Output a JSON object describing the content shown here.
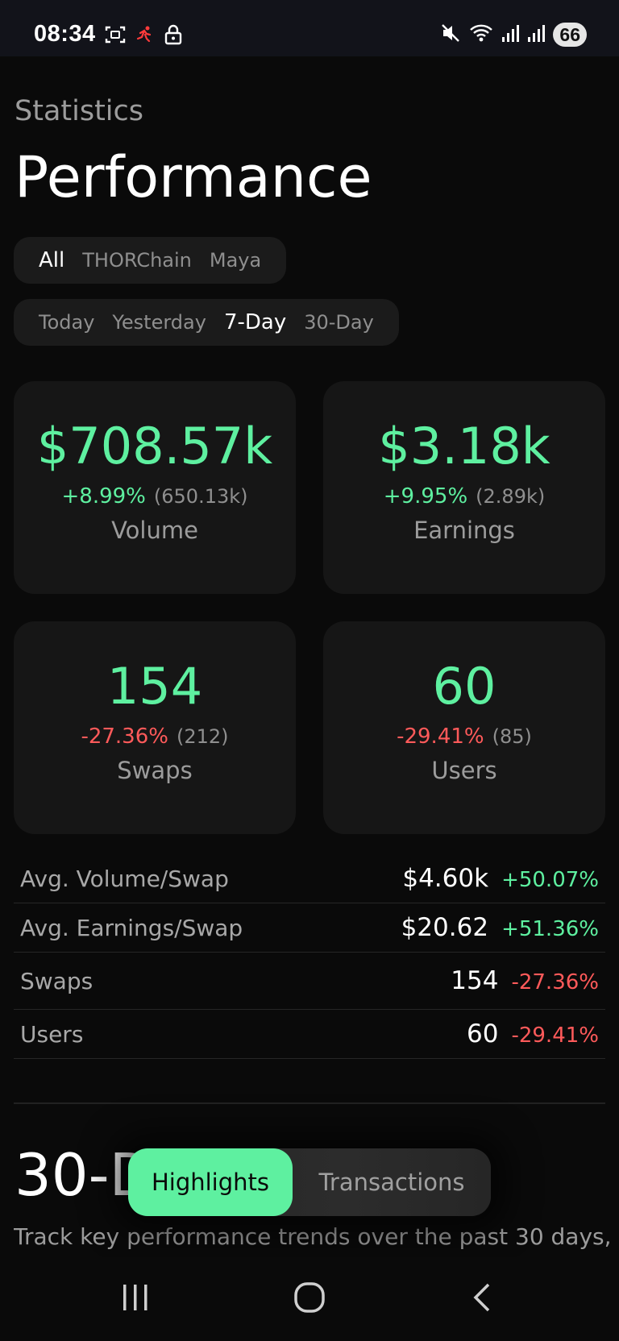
{
  "status_bar": {
    "time": "08:34",
    "left_icons": [
      "screenshot-icon",
      "activity-icon",
      "lock-icon"
    ],
    "right_icons": [
      "mute-icon",
      "wifi-icon",
      "signal-icon",
      "signal-icon"
    ],
    "battery": "66"
  },
  "header": {
    "eyebrow": "Statistics",
    "title": "Performance"
  },
  "chain_filter": {
    "options": [
      "All",
      "THORChain",
      "Maya"
    ],
    "selected": "All"
  },
  "period_filter": {
    "options": [
      "Today",
      "Yesterday",
      "7-Day",
      "30-Day"
    ],
    "selected": "7-Day"
  },
  "cards": [
    {
      "value": "$708.57k",
      "delta": "+8.99%",
      "delta_direction": "up",
      "previous": "(650.13k)",
      "label": "Volume"
    },
    {
      "value": "$3.18k",
      "delta": "+9.95%",
      "delta_direction": "up",
      "previous": "(2.89k)",
      "label": "Earnings"
    },
    {
      "value": "154",
      "delta": "-27.36%",
      "delta_direction": "down",
      "previous": "(212)",
      "label": "Swaps"
    },
    {
      "value": "60",
      "delta": "-29.41%",
      "delta_direction": "down",
      "previous": "(85)",
      "label": "Users"
    }
  ],
  "metrics": [
    {
      "label": "Avg. Volume/Swap",
      "value": "$4.60k",
      "delta": "+50.07%",
      "delta_direction": "up"
    },
    {
      "label": "Avg. Earnings/Swap",
      "value": "$20.62",
      "delta": "+51.36%",
      "delta_direction": "up"
    },
    {
      "label": "Swaps",
      "value": "154",
      "delta": "-27.36%",
      "delta_direction": "down"
    },
    {
      "label": "Users",
      "value": "60",
      "delta": "-29.41%",
      "delta_direction": "down"
    }
  ],
  "section": {
    "title": "30-D",
    "description": "Track key performance trends over the past 30 days,"
  },
  "bottom_tabs": {
    "active": "Highlights",
    "inactive": "Transactions"
  },
  "colors": {
    "positive": "#5ef0a0",
    "negative": "#ff5a5a",
    "background": "#0a0a0a",
    "card": "#161616"
  },
  "nav_icons": [
    "recents-icon",
    "home-icon",
    "back-icon"
  ]
}
